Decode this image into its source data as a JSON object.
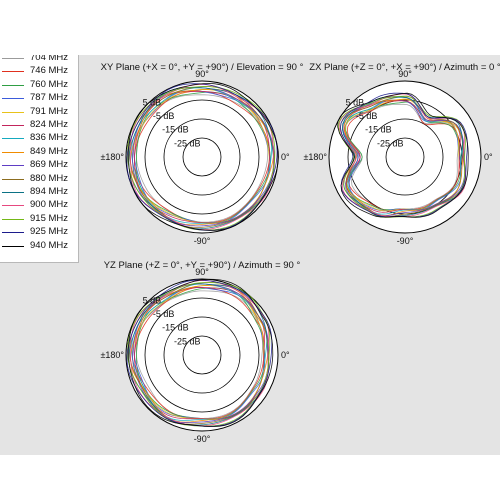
{
  "colors": {
    "panel_bg": "#e4e4e4",
    "ring": "#000000",
    "inner_ring": "#ffffff"
  },
  "legend": [
    {
      "label": "704 MHz",
      "color": "#9b9b9b"
    },
    {
      "label": "746 MHz",
      "color": "#e0301e"
    },
    {
      "label": "760 MHz",
      "color": "#2f9e44"
    },
    {
      "label": "787 MHz",
      "color": "#3b5bdb"
    },
    {
      "label": "791 MHz",
      "color": "#e8c21a"
    },
    {
      "label": "824 MHz",
      "color": "#c2255c"
    },
    {
      "label": "836 MHz",
      "color": "#15aabf"
    },
    {
      "label": "849 MHz",
      "color": "#f08c00"
    },
    {
      "label": "869 MHz",
      "color": "#5f3dc4"
    },
    {
      "label": "880 MHz",
      "color": "#8c6d1f"
    },
    {
      "label": "894 MHz",
      "color": "#0b7285"
    },
    {
      "label": "900 MHz",
      "color": "#e64980"
    },
    {
      "label": "915 MHz",
      "color": "#74b816"
    },
    {
      "label": "925 MHz",
      "color": "#1c1c8c"
    },
    {
      "label": "940 MHz",
      "color": "#000000"
    }
  ],
  "chart_data": [
    {
      "type": "polar",
      "title": "XY Plane (+X = 0°, +Y = +90°) / Elevation = 90 °",
      "angle_labels": {
        "top": "90°",
        "bottom": "-90°",
        "left": "±180°",
        "right": "0°"
      },
      "ring_labels": [
        "5 dB",
        "-5 dB",
        "-15 dB",
        "-25 dB"
      ],
      "r_range_db": [
        -35,
        5
      ],
      "series_source": "legend",
      "angles_deg": [
        0,
        30,
        60,
        90,
        120,
        150,
        180,
        210,
        240,
        270,
        300,
        330
      ],
      "gain_db": [
        2,
        2,
        1,
        1,
        2,
        2,
        2,
        2,
        1,
        1,
        2,
        2
      ]
    },
    {
      "type": "polar",
      "title": "ZX Plane (+Z = 0°, +X = +90°) / Azimuth = 0 °",
      "angle_labels": {
        "top": "90°",
        "bottom": "-90°",
        "left": "±180°",
        "right": "0°"
      },
      "ring_labels": [
        "5 dB",
        "-5 dB",
        "-15 dB",
        "-25 dB"
      ],
      "r_range_db": [
        -35,
        5
      ],
      "series_source": "legend",
      "angles_deg": [
        0,
        30,
        60,
        90,
        120,
        150,
        180,
        210,
        240,
        270,
        300,
        330
      ],
      "gain_db": [
        -5,
        -3,
        -12,
        -4,
        -3,
        2,
        -10,
        0,
        -2,
        -6,
        -5,
        -2
      ]
    },
    {
      "type": "polar",
      "title": "YZ Plane (+Z = 0°, +Y = +90°) / Azimuth = 90 °",
      "angle_labels": {
        "top": "90°",
        "bottom": "-90°",
        "left": "±180°",
        "right": "0°"
      },
      "ring_labels": [
        "5 dB",
        "-5 dB",
        "-15 dB",
        "-25 dB"
      ],
      "r_range_db": [
        -35,
        5
      ],
      "series_source": "legend",
      "angles_deg": [
        0,
        30,
        60,
        90,
        120,
        150,
        180,
        210,
        240,
        270,
        300,
        330
      ],
      "gain_db": [
        -1,
        1,
        3,
        2,
        1,
        2,
        2,
        1,
        2,
        0,
        1,
        0
      ]
    }
  ]
}
